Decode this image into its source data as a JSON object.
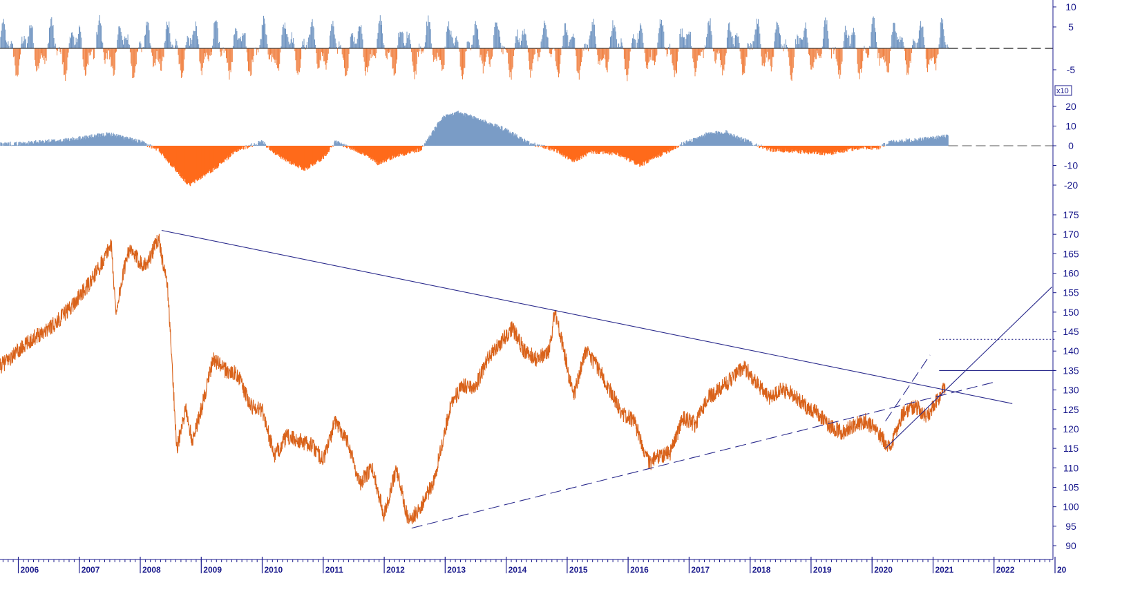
{
  "chart_data": [
    {
      "panel": "top-oscillator",
      "type": "bar",
      "yticks": [
        10,
        5,
        -5
      ],
      "ylim": [
        -10,
        11
      ],
      "colors": {
        "positive": "#6f94c1",
        "negative": "#f08040",
        "zero_line": "#1a1a1a"
      },
      "seed": 7
    },
    {
      "panel": "middle-oscillator",
      "type": "area",
      "yticks": [
        20,
        10,
        0,
        -10,
        -20
      ],
      "ylim": [
        -25,
        22
      ],
      "scale_label": "x10",
      "colors": {
        "positive": "#7a9cc6",
        "negative": "#ff6a1a",
        "zero_line": "#777777"
      },
      "x": [
        2006.0,
        2006.8,
        2007.5,
        2008.0,
        2008.3,
        2008.8,
        2009.2,
        2009.6,
        2010.0,
        2010.3,
        2010.7,
        2011.0,
        2011.2,
        2011.6,
        2011.9,
        2012.2,
        2012.6,
        2012.95,
        2013.2,
        2013.6,
        2014.0,
        2014.4,
        2014.8,
        2015.1,
        2015.4,
        2015.8,
        2016.2,
        2016.5,
        2016.9,
        2017.3,
        2017.6,
        2017.9,
        2018.3,
        2018.8,
        2019.3,
        2019.8,
        2020.1,
        2020.3,
        2020.7,
        2021.0,
        2021.25
      ],
      "y": [
        1,
        3,
        6,
        2,
        -2,
        -20,
        -12,
        -2,
        2,
        -6,
        -12,
        -6,
        2,
        -3,
        -9,
        -5,
        -2,
        14,
        17,
        13,
        8,
        1,
        -2,
        -8,
        -3,
        -4,
        -10,
        -5,
        1,
        6,
        7,
        3,
        -2,
        -3,
        -4,
        -1,
        -1,
        2,
        3,
        4,
        5
      ]
    },
    {
      "panel": "price",
      "type": "line",
      "xlabel": "",
      "ylabel": "",
      "x_ticks": [
        "2006",
        "2007",
        "2008",
        "2009",
        "2010",
        "2011",
        "2012",
        "2013",
        "2014",
        "2015",
        "2016",
        "2017",
        "2018",
        "2019",
        "2020",
        "2021",
        "2022",
        "20"
      ],
      "yticks": [
        175,
        170,
        165,
        160,
        155,
        150,
        145,
        140,
        135,
        130,
        125,
        120,
        115,
        110,
        105,
        100,
        95,
        90
      ],
      "ylim": [
        87,
        178
      ],
      "xlim": [
        2005.7,
        2023.0
      ],
      "grid": false,
      "colors": {
        "price": "#d9621a",
        "trendline": "#2a2a8c"
      },
      "series": [
        {
          "x": [
            2005.7,
            2006.0,
            2006.3,
            2006.6,
            2006.9,
            2007.2,
            2007.45,
            2007.52,
            2007.6,
            2007.8,
            2008.0,
            2008.1,
            2008.3,
            2008.45,
            2008.6,
            2008.75,
            2008.85,
            2009.0,
            2009.2,
            2009.4,
            2009.6,
            2009.8,
            2010.0,
            2010.2,
            2010.4,
            2010.6,
            2010.8,
            2011.0,
            2011.2,
            2011.4,
            2011.6,
            2011.8,
            2012.0,
            2012.2,
            2012.4,
            2012.6,
            2012.8,
            2012.95,
            2013.1,
            2013.3,
            2013.5,
            2013.7,
            2013.9,
            2014.1,
            2014.3,
            2014.5,
            2014.7,
            2014.8,
            2014.95,
            2015.1,
            2015.3,
            2015.5,
            2015.7,
            2015.9,
            2016.1,
            2016.35,
            2016.5,
            2016.7,
            2016.9,
            2017.1,
            2017.3,
            2017.5,
            2017.7,
            2017.9,
            2018.1,
            2018.3,
            2018.5,
            2018.7,
            2018.9,
            2019.1,
            2019.3,
            2019.5,
            2019.7,
            2019.9,
            2020.1,
            2020.3,
            2020.5,
            2020.7,
            2020.9,
            2021.1,
            2021.2
          ],
          "y": [
            136,
            140,
            144,
            147,
            152,
            158,
            165,
            168,
            150,
            166,
            163,
            162,
            169,
            156,
            115,
            125,
            117,
            125,
            138,
            135,
            134,
            126,
            125,
            113,
            118,
            117,
            116,
            112,
            122,
            117,
            106,
            110,
            98,
            110,
            96,
            100,
            106,
            116,
            127,
            131,
            131,
            138,
            142,
            146,
            140,
            138,
            140,
            150,
            140,
            128,
            140,
            136,
            130,
            124,
            122,
            111,
            113,
            114,
            123,
            121,
            128,
            130,
            133,
            136,
            132,
            128,
            130,
            129,
            126,
            124,
            121,
            119,
            121,
            122,
            119,
            115,
            124,
            126,
            123,
            128,
            131
          ]
        }
      ],
      "trendlines": [
        {
          "name": "resistance",
          "style": "solid",
          "x": [
            2008.35,
            2022.3
          ],
          "y": [
            171,
            126.5
          ]
        },
        {
          "name": "support",
          "style": "dashed",
          "x": [
            2012.45,
            2022.0
          ],
          "y": [
            94.5,
            132
          ]
        },
        {
          "name": "channel",
          "style": "solid",
          "x": [
            2020.22,
            2022.95
          ],
          "y": [
            115,
            156.5
          ]
        },
        {
          "name": "channel-upper",
          "style": "dashed",
          "x": [
            2020.22,
            2020.95
          ],
          "y": [
            122,
            139
          ]
        },
        {
          "name": "level-135",
          "style": "solid",
          "x": [
            2021.1,
            2023.0
          ],
          "y": [
            135,
            135
          ]
        },
        {
          "name": "level-143",
          "style": "dotted",
          "x": [
            2021.1,
            2023.0
          ],
          "y": [
            143,
            143
          ]
        }
      ]
    }
  ]
}
